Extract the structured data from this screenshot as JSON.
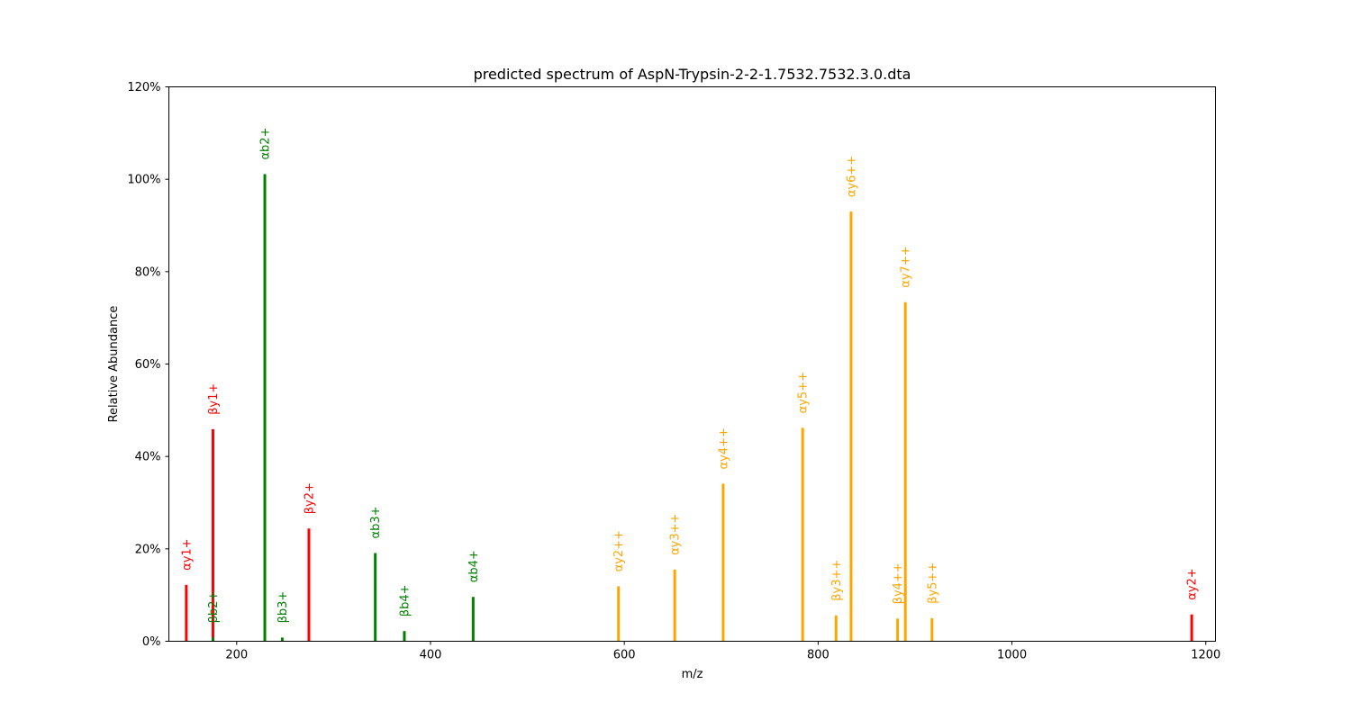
{
  "chart_data": {
    "type": "bar",
    "title": "predicted spectrum of AspN-Trypsin-2-2-1.7532.7532.3.0.dta",
    "xlabel": "m/z",
    "ylabel": "Relative Abundance",
    "xlim": [
      130,
      1210
    ],
    "ylim": [
      0,
      120
    ],
    "x_ticks": [
      200,
      400,
      600,
      800,
      1000,
      1200
    ],
    "y_ticks": [
      0,
      20,
      40,
      60,
      80,
      100,
      120
    ],
    "y_tick_labels": [
      "0%",
      "20%",
      "40%",
      "60%",
      "80%",
      "100%",
      "120%"
    ],
    "grid": false,
    "colors": {
      "red": "#ff0000",
      "green": "#008000",
      "orange": "#ffa500"
    },
    "peaks": [
      {
        "mz": 148,
        "intensity": 12.2,
        "label": "αy1+",
        "color": "red"
      },
      {
        "mz": 175.5,
        "intensity": 45.9,
        "label": "βy1+",
        "color": "red"
      },
      {
        "mz": 175.5,
        "intensity": 0.8,
        "label": "βb2+",
        "color": "green"
      },
      {
        "mz": 229,
        "intensity": 101.1,
        "label": "αb2+",
        "color": "green"
      },
      {
        "mz": 247,
        "intensity": 0.8,
        "label": "βb3+",
        "color": "green"
      },
      {
        "mz": 274.5,
        "intensity": 24.4,
        "label": "βy2+",
        "color": "red"
      },
      {
        "mz": 343,
        "intensity": 19.1,
        "label": "αb3+",
        "color": "green"
      },
      {
        "mz": 373,
        "intensity": 2.2,
        "label": "βb4+",
        "color": "green"
      },
      {
        "mz": 444,
        "intensity": 9.6,
        "label": "αb4+",
        "color": "green"
      },
      {
        "mz": 594,
        "intensity": 11.9,
        "label": "αy2++",
        "color": "orange"
      },
      {
        "mz": 652,
        "intensity": 15.5,
        "label": "αy3++",
        "color": "orange"
      },
      {
        "mz": 702,
        "intensity": 34.1,
        "label": "αy4++",
        "color": "orange"
      },
      {
        "mz": 784,
        "intensity": 46.2,
        "label": "αy5++",
        "color": "orange"
      },
      {
        "mz": 818.5,
        "intensity": 5.6,
        "label": "βy3++",
        "color": "orange"
      },
      {
        "mz": 834,
        "intensity": 93.0,
        "label": "αy6++",
        "color": "orange"
      },
      {
        "mz": 882,
        "intensity": 4.9,
        "label": "βy4++",
        "color": "orange"
      },
      {
        "mz": 890,
        "intensity": 73.4,
        "label": "αy7++",
        "color": "orange"
      },
      {
        "mz": 917.5,
        "intensity": 5.0,
        "label": "βy5++",
        "color": "orange"
      },
      {
        "mz": 1185.5,
        "intensity": 5.8,
        "label": "αy2+",
        "color": "red"
      }
    ]
  }
}
